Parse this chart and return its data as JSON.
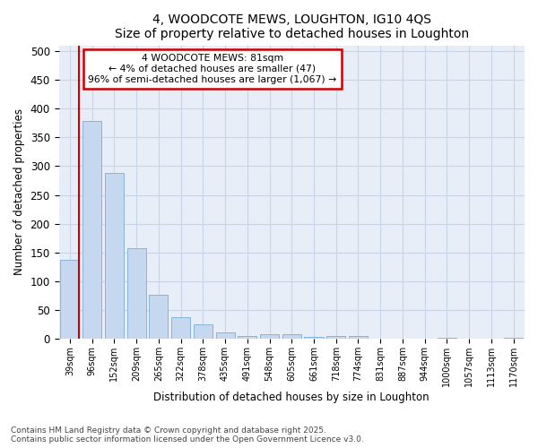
{
  "title1": "4, WOODCOTE MEWS, LOUGHTON, IG10 4QS",
  "title2": "Size of property relative to detached houses in Loughton",
  "xlabel": "Distribution of detached houses by size in Loughton",
  "ylabel": "Number of detached properties",
  "categories": [
    "39sqm",
    "96sqm",
    "152sqm",
    "209sqm",
    "265sqm",
    "322sqm",
    "378sqm",
    "435sqm",
    "491sqm",
    "548sqm",
    "605sqm",
    "661sqm",
    "718sqm",
    "774sqm",
    "831sqm",
    "887sqm",
    "944sqm",
    "1000sqm",
    "1057sqm",
    "1113sqm",
    "1170sqm"
  ],
  "values": [
    137,
    378,
    288,
    158,
    76,
    38,
    25,
    12,
    5,
    8,
    8,
    4,
    5,
    5,
    0,
    0,
    0,
    2,
    0,
    0,
    2
  ],
  "bar_color": "#c5d8f0",
  "bar_edge_color": "#7aadd4",
  "annotation_text_line1": "4 WOODCOTE MEWS: 81sqm",
  "annotation_text_line2": "← 4% of detached houses are smaller (47)",
  "annotation_text_line3": "96% of semi-detached houses are larger (1,067) →",
  "annotation_box_facecolor": "#ffffff",
  "annotation_box_edgecolor": "#cc0000",
  "vline_color": "#cc0000",
  "ylim": [
    0,
    510
  ],
  "yticks": [
    0,
    50,
    100,
    150,
    200,
    250,
    300,
    350,
    400,
    450,
    500
  ],
  "footer_line1": "Contains HM Land Registry data © Crown copyright and database right 2025.",
  "footer_line2": "Contains public sector information licensed under the Open Government Licence v3.0.",
  "fig_bg_color": "#ffffff",
  "plot_bg_color": "#e8eef8",
  "grid_color": "#c8d4e8"
}
